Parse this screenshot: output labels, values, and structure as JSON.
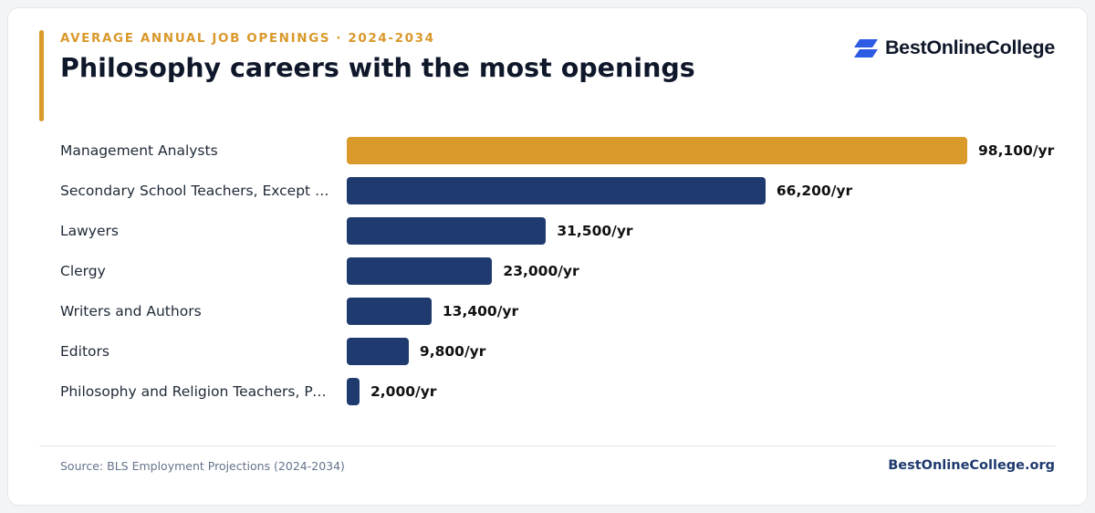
{
  "header": {
    "kicker": "AVERAGE ANNUAL JOB OPENINGS · 2024-2034",
    "title": "Philosophy careers with the most openings"
  },
  "brand": {
    "name": "BestOnlineCollege",
    "logo_icon": "stacked-parallelogram-logo-icon"
  },
  "footer": {
    "source": "Source: BLS Employment Projections (2024-2034)",
    "site": "BestOnlineCollege.org"
  },
  "colors": {
    "highlight": "#d9992b",
    "bar": "#1e3a6e",
    "title": "#0f172a",
    "logo": "#2d5be3"
  },
  "chart_data": {
    "type": "bar",
    "orientation": "horizontal",
    "title": "Philosophy careers with the most openings",
    "categories": [
      "Management Analysts",
      "Secondary School Teachers, Except S...",
      "Lawyers",
      "Clergy",
      "Writers and Authors",
      "Editors",
      "Philosophy and Religion Teachers, Pos..."
    ],
    "values": [
      98100,
      66200,
      31500,
      23000,
      13400,
      9800,
      2000
    ],
    "value_labels": [
      "98,100/yr",
      "66,200/yr",
      "31,500/yr",
      "23,000/yr",
      "13,400/yr",
      "9,800/yr",
      "2,000/yr"
    ],
    "highlighted_index": 0,
    "xlim": [
      0,
      98100
    ],
    "grid": false,
    "legend": "none"
  }
}
